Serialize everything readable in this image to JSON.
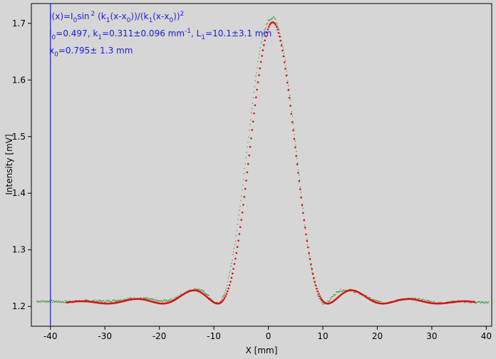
{
  "chart_data": {
    "type": "scatter",
    "title": "",
    "xlabel": "X [mm]",
    "ylabel": "Intensity [mV]",
    "xlim": [
      -43.5,
      41
    ],
    "ylim": [
      1.165,
      1.735
    ],
    "x_ticks": [
      -40,
      -30,
      -20,
      -10,
      0,
      10,
      20,
      30,
      40
    ],
    "y_ticks": [
      1.2,
      1.3,
      1.4,
      1.5,
      1.6,
      1.7
    ],
    "x_tick_labels": [
      "-40",
      "-30",
      "-20",
      "-10",
      "0",
      "10",
      "20",
      "30",
      "40"
    ],
    "y_tick_labels": [
      "1.2",
      "1.3",
      "1.4",
      "1.5",
      "1.6",
      "1.7"
    ],
    "grid": false,
    "cursor_line_x": -40,
    "colors": {
      "background": "#d6d6d6",
      "measured": "#2e8b2e",
      "fit": "#dd1111",
      "cursor": "#1a1adc",
      "annotation": "#1a1adc"
    },
    "series": [
      {
        "role": "measured",
        "x_range": [
          -42.5,
          40.5
        ],
        "data": [
          [
            -42.5,
            1.209
          ],
          [
            -40,
            1.209
          ],
          [
            -37.5,
            1.208
          ],
          [
            -35,
            1.209
          ],
          [
            -32.5,
            1.21
          ],
          [
            -30,
            1.209
          ],
          [
            -27.5,
            1.211
          ],
          [
            -25,
            1.214
          ],
          [
            -22.5,
            1.214
          ],
          [
            -20,
            1.209
          ],
          [
            -17.5,
            1.212
          ],
          [
            -15,
            1.226
          ],
          [
            -13,
            1.231
          ],
          [
            -11.5,
            1.224
          ],
          [
            -10,
            1.207
          ],
          [
            -9,
            1.205
          ],
          [
            -8,
            1.222
          ],
          [
            -7,
            1.262
          ],
          [
            -6,
            1.318
          ],
          [
            -5,
            1.392
          ],
          [
            -4,
            1.47
          ],
          [
            -3,
            1.553
          ],
          [
            -2,
            1.628
          ],
          [
            -1,
            1.681
          ],
          [
            0,
            1.705
          ],
          [
            1,
            1.712
          ],
          [
            2,
            1.69
          ],
          [
            3,
            1.64
          ],
          [
            4,
            1.57
          ],
          [
            5,
            1.485
          ],
          [
            6,
            1.4
          ],
          [
            7,
            1.322
          ],
          [
            8,
            1.26
          ],
          [
            9,
            1.22
          ],
          [
            10,
            1.205
          ],
          [
            11,
            1.208
          ],
          [
            12,
            1.22
          ],
          [
            13,
            1.228
          ],
          [
            15,
            1.229
          ],
          [
            17,
            1.222
          ],
          [
            19,
            1.212
          ],
          [
            21,
            1.206
          ],
          [
            23,
            1.209
          ],
          [
            25,
            1.213
          ],
          [
            27,
            1.213
          ],
          [
            29,
            1.21
          ],
          [
            31,
            1.206
          ],
          [
            33,
            1.207
          ],
          [
            35,
            1.209
          ],
          [
            37,
            1.208
          ],
          [
            39,
            1.207
          ],
          [
            40.5,
            1.207
          ]
        ]
      },
      {
        "role": "fit",
        "x_range": [
          -37,
          38
        ]
      }
    ],
    "annotation": {
      "line1_main": "I(x)=I",
      "line1_sub": "0",
      "line1_rest": "sin",
      "line1_sup": "2",
      "line1_mid": " (k",
      "line1_sub2": "1",
      "line1_mid2": "(x-x",
      "line1_sub3": "0",
      "line1_mid3": "))/(k",
      "line1_sub4": "1",
      "line1_mid4": "(x-x",
      "line1_sub5": "0",
      "line1_end": "))",
      "line1_sup2": "2",
      "line2_a": "I",
      "line2_a_sub": "0",
      "line2_a_val": "=0.497,  k",
      "line2_b_sub": "1",
      "line2_b_val": "=0.311±0.096 mm",
      "line2_b_sup": "-1",
      "line2_c": ",   L",
      "line2_c_sub": "1",
      "line2_c_val": "=10.1±3.1 mm",
      "line3_a": "x",
      "line3_a_sub": "0",
      "line3_a_val": "=0.795±  1.3 mm"
    }
  }
}
